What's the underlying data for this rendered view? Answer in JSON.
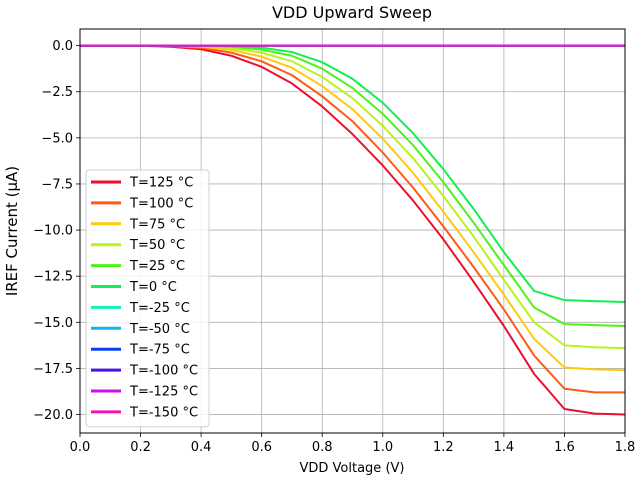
{
  "chart_data": {
    "type": "line",
    "title": "VDD Upward Sweep",
    "xlabel": "VDD Voltage (V)",
    "ylabel": "IREF Current (μA)",
    "xlim": [
      0.0,
      1.8
    ],
    "ylim": [
      -21.0,
      0.9
    ],
    "x_ticks": [
      0.0,
      0.2,
      0.4,
      0.6,
      0.8,
      1.0,
      1.2,
      1.4,
      1.6,
      1.8
    ],
    "x_tick_labels": [
      "0.0",
      "0.2",
      "0.4",
      "0.6",
      "0.8",
      "1.0",
      "1.2",
      "1.4",
      "1.6",
      "1.8"
    ],
    "y_ticks": [
      0.0,
      -2.5,
      -5.0,
      -7.5,
      -10.0,
      -12.5,
      -15.0,
      -17.5,
      -20.0
    ],
    "y_tick_labels": [
      "0.0",
      "−2.5",
      "−5.0",
      "−7.5",
      "−10.0",
      "−12.5",
      "−15.0",
      "−17.5",
      "−20.0"
    ],
    "grid": true,
    "legend_position": "lower-left",
    "x": [
      0.0,
      0.1,
      0.2,
      0.3,
      0.4,
      0.5,
      0.6,
      0.7,
      0.8,
      0.9,
      1.0,
      1.1,
      1.2,
      1.3,
      1.4,
      1.5,
      1.6,
      1.7,
      1.8
    ],
    "series": [
      {
        "name": "T=125 °C",
        "color": "#ee0f2e",
        "values": [
          0.0,
          0.0,
          -0.01,
          -0.06,
          -0.2,
          -0.55,
          -1.15,
          -2.05,
          -3.3,
          -4.8,
          -6.5,
          -8.4,
          -10.5,
          -12.8,
          -15.2,
          -17.8,
          -19.7,
          -19.95,
          -20.0
        ]
      },
      {
        "name": "T=100 °C",
        "color": "#ff5a16",
        "values": [
          0.0,
          0.0,
          0.0,
          -0.03,
          -0.12,
          -0.38,
          -0.85,
          -1.6,
          -2.75,
          -4.1,
          -5.8,
          -7.7,
          -9.8,
          -12.0,
          -14.3,
          -16.8,
          -18.6,
          -18.8,
          -18.8
        ]
      },
      {
        "name": "T=75 °C",
        "color": "#ffc90e",
        "values": [
          0.0,
          0.0,
          0.0,
          -0.01,
          -0.06,
          -0.23,
          -0.6,
          -1.2,
          -2.2,
          -3.45,
          -5.05,
          -6.9,
          -9.0,
          -11.2,
          -13.5,
          -15.9,
          -17.45,
          -17.55,
          -17.6
        ]
      },
      {
        "name": "T=50 °C",
        "color": "#b8f31a",
        "values": [
          0.0,
          0.0,
          0.0,
          0.0,
          -0.03,
          -0.13,
          -0.38,
          -0.85,
          -1.7,
          -2.85,
          -4.35,
          -6.1,
          -8.15,
          -10.35,
          -12.7,
          -15.0,
          -16.25,
          -16.35,
          -16.4
        ]
      },
      {
        "name": "T=25 °C",
        "color": "#4ef21a",
        "values": [
          0.0,
          0.0,
          0.0,
          0.0,
          -0.01,
          -0.06,
          -0.22,
          -0.55,
          -1.25,
          -2.3,
          -3.7,
          -5.4,
          -7.4,
          -9.6,
          -11.9,
          -14.2,
          -15.1,
          -15.15,
          -15.2
        ]
      },
      {
        "name": "T=0 °C",
        "color": "#10f050",
        "values": [
          0.0,
          0.0,
          0.0,
          0.0,
          0.0,
          -0.03,
          -0.11,
          -0.35,
          -0.9,
          -1.8,
          -3.1,
          -4.75,
          -6.7,
          -8.85,
          -11.2,
          -13.3,
          -13.8,
          -13.85,
          -13.9
        ]
      },
      {
        "name": "T=-25 °C",
        "color": "#12f0c0",
        "values": [
          0.0,
          0.0,
          0.0,
          0.0,
          0.0,
          0.0,
          0.0,
          0.0,
          0.0,
          0.0,
          0.0,
          0.0,
          0.0,
          0.0,
          0.0,
          0.0,
          0.0,
          0.0,
          0.0
        ]
      },
      {
        "name": "T=-50 °C",
        "color": "#0fb4ee",
        "values": [
          0.0,
          0.0,
          0.0,
          0.0,
          0.0,
          0.0,
          0.0,
          0.0,
          0.0,
          0.0,
          0.0,
          0.0,
          0.0,
          0.0,
          0.0,
          0.0,
          0.0,
          0.0,
          0.0
        ]
      },
      {
        "name": "T=-75 °C",
        "color": "#0a3ef0",
        "values": [
          0.0,
          0.0,
          0.0,
          0.0,
          0.0,
          0.0,
          0.0,
          0.0,
          0.0,
          0.0,
          0.0,
          0.0,
          0.0,
          0.0,
          0.0,
          0.0,
          0.0,
          0.0,
          0.0
        ]
      },
      {
        "name": "T=-100 °C",
        "color": "#4a10f0",
        "values": [
          0.0,
          0.0,
          0.0,
          0.0,
          0.0,
          0.0,
          0.0,
          0.0,
          0.0,
          0.0,
          0.0,
          0.0,
          0.0,
          0.0,
          0.0,
          0.0,
          0.0,
          0.0,
          0.0
        ]
      },
      {
        "name": "T=-125 °C",
        "color": "#c810f0",
        "values": [
          0.0,
          0.0,
          0.0,
          0.0,
          0.0,
          0.0,
          0.0,
          0.0,
          0.0,
          0.0,
          0.0,
          0.0,
          0.0,
          0.0,
          0.0,
          0.0,
          0.0,
          0.0,
          0.0
        ]
      },
      {
        "name": "T=-150 °C",
        "color": "#f014b4",
        "values": [
          0.0,
          0.0,
          0.0,
          0.0,
          0.0,
          0.0,
          0.0,
          0.0,
          0.0,
          0.0,
          0.0,
          0.0,
          0.0,
          0.0,
          0.0,
          0.0,
          0.0,
          0.0,
          0.0
        ]
      }
    ]
  }
}
